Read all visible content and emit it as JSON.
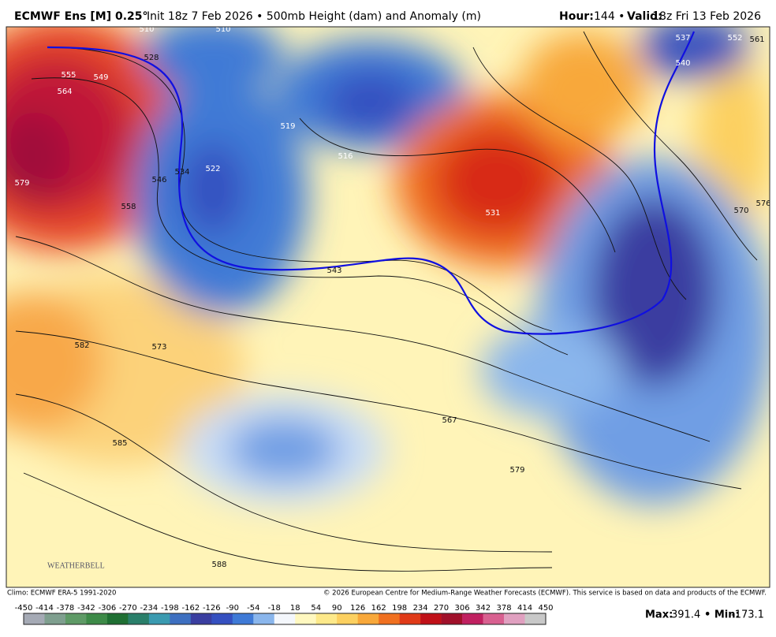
{
  "header": {
    "model": "ECMWF Ens [M] 0.25°",
    "description": "Init 18z 7 Feb 2026 • 500mb Height (dam) and Anomaly (m)",
    "hour_label": "Hour:",
    "hour_value": "144 •",
    "valid_label": "Valid:",
    "valid_value": "18z Fri 13 Feb 2026"
  },
  "map": {
    "contour_labels": [
      555,
      549,
      564,
      579,
      546,
      534,
      522,
      528,
      510,
      510,
      558,
      543,
      531,
      537,
      552,
      561,
      540,
      570,
      576,
      573,
      582,
      585,
      588,
      567,
      579,
      516,
      519
    ],
    "logo": "WEATHERBELL"
  },
  "footer": {
    "climo": "Climo: ECMWF ERA-5 1991-2020",
    "copyright": "© 2026 European Centre for Medium-Range Weather Forecasts (ECMWF). This service is based on data and products of the ECMWF.",
    "max_label": "Max:",
    "max_value": 391.4,
    "min_label": "• Min:",
    "min_value": -173.1
  },
  "colorbar": {
    "ticks": [
      -450,
      -414,
      -378,
      -342,
      -306,
      -270,
      -234,
      -198,
      -162,
      -126,
      -90,
      -54,
      -18,
      18,
      54,
      90,
      126,
      162,
      198,
      234,
      270,
      306,
      342,
      378,
      414,
      450
    ],
    "colors": [
      "#a5aab5",
      "#7f9f8f",
      "#5e9a66",
      "#3d8a48",
      "#1f6f33",
      "#2a7f6a",
      "#3a9ab0",
      "#3d6fc0",
      "#3a3ea0",
      "#3550c0",
      "#3f7ad6",
      "#8ab6ec",
      "#f4f7fc",
      "#fff8c0",
      "#fde98a",
      "#fcd060",
      "#f8a83a",
      "#f07020",
      "#e03a18",
      "#c01018",
      "#a0102a",
      "#c02060",
      "#d86090",
      "#e0a0c0",
      "#c8c8c8"
    ]
  }
}
